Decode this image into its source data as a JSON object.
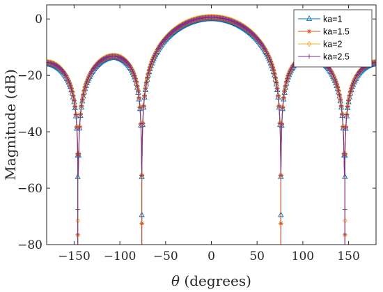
{
  "chart_data": {
    "type": "line",
    "xlabel": "θ (degrees)",
    "ylabel": "Magnitude (dB)",
    "xlim": [
      -180,
      180
    ],
    "ylim": [
      -80,
      5
    ],
    "xticks": [
      -150,
      -100,
      -50,
      0,
      50,
      100,
      150
    ],
    "yticks": [
      0,
      -20,
      -40,
      -60,
      -80
    ],
    "x_tick_labels": [
      "−150",
      "−100",
      "−50",
      "0",
      "50",
      "100",
      "150"
    ],
    "y_tick_labels": [
      "0",
      "−20",
      "−40",
      "−60",
      "−80"
    ],
    "grid": false,
    "legend_position": "top-right",
    "description_of_shape": "array-factor style pattern: main lobe peak 0 dB at 0°, nulls near ±76° and ±145°, side lobes about −17 dB near ±103°, about −20 dB at ±180°",
    "series": [
      {
        "name": "ka=1",
        "color": "#0072BD",
        "marker": "triangle",
        "offset": 0.0,
        "deep_nulls": [
          [
            -76,
            -69.5
          ],
          [
            76,
            -69.5
          ],
          [
            -146,
            -56
          ],
          [
            146,
            -56
          ]
        ]
      },
      {
        "name": "ka=1.5",
        "color": "#D95319",
        "marker": "asterisk",
        "offset": 0.4,
        "deep_nulls": [
          [
            -76,
            -72.5
          ],
          [
            76,
            -72.5
          ],
          [
            -146,
            -76.5
          ],
          [
            146,
            -76.5
          ]
        ]
      },
      {
        "name": "ka=2",
        "color": "#EDB120",
        "marker": "diamond",
        "offset": 0.8,
        "deep_nulls": [
          [
            -146,
            -71.5
          ],
          [
            146,
            -71.5
          ]
        ]
      },
      {
        "name": "ka=2.5",
        "color": "#7E2F8E",
        "marker": "plus",
        "offset": 0.6,
        "deep_nulls": [
          [
            -146,
            -67.5
          ],
          [
            146,
            -67.5
          ]
        ]
      }
    ]
  }
}
